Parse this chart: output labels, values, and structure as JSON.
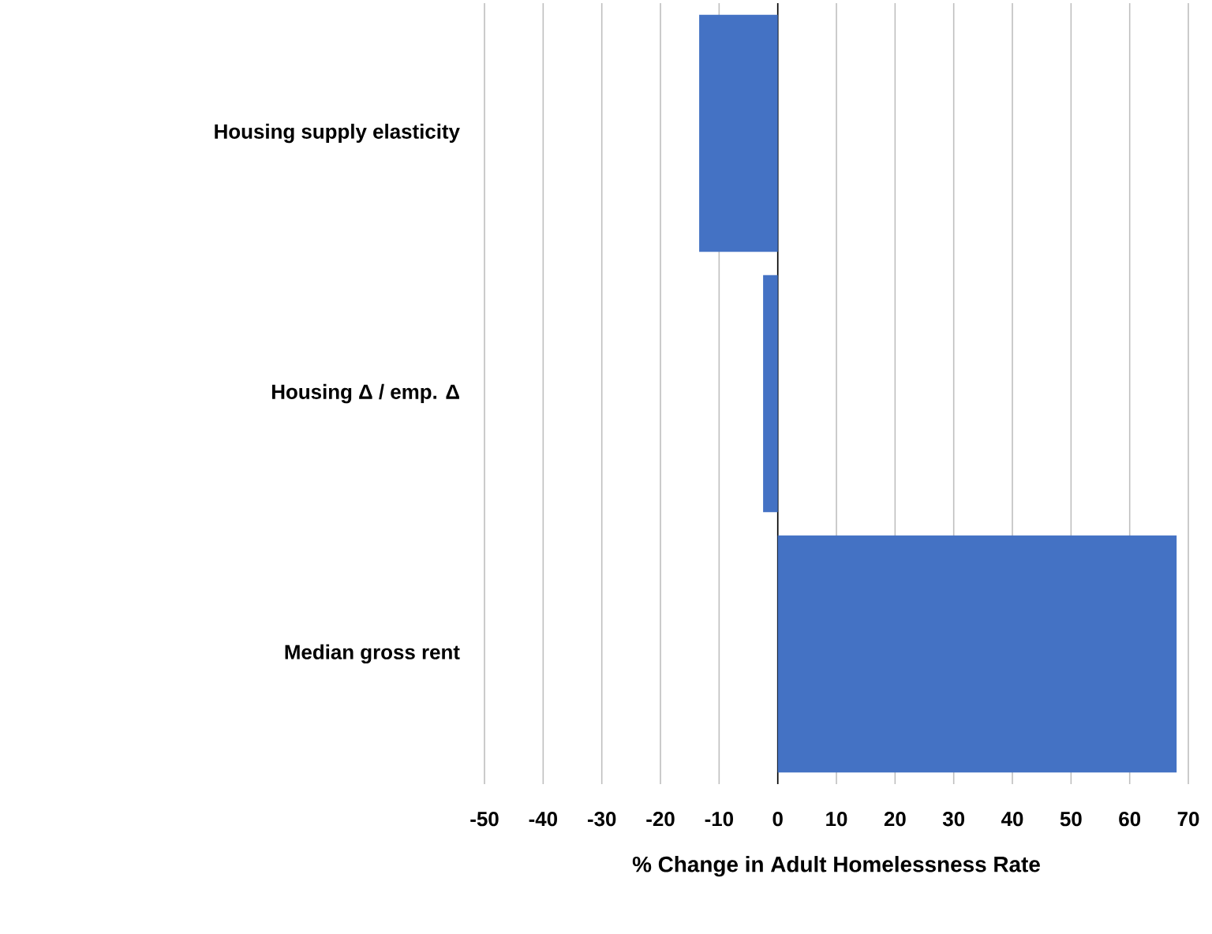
{
  "chart_data": {
    "type": "bar",
    "orientation": "horizontal",
    "xlabel": "% Change in Adult Homelessness Rate",
    "categories": [
      "Housing supply elasticity",
      "Housing Δ / emp. Δ",
      "Median gross rent"
    ],
    "values": [
      -13.4,
      -2.5,
      68
    ],
    "color": "#4472c4",
    "xlim": [
      -50,
      70
    ],
    "xticks": [
      -50,
      -40,
      -30,
      -20,
      -10,
      0,
      10,
      20,
      30,
      40,
      50,
      60,
      70
    ],
    "grid": "x"
  }
}
